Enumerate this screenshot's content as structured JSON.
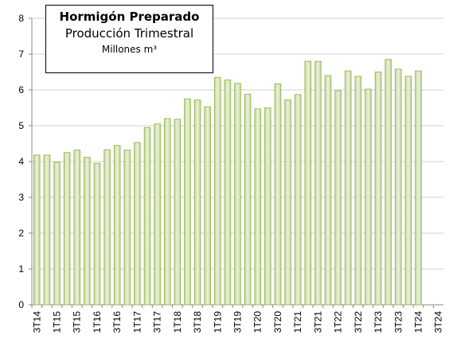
{
  "chart_data": {
    "type": "bar",
    "title": "Hormigón Preparado",
    "subtitle": "Producción Trimestral",
    "ylabel": "Millones m³",
    "categories": [
      "3T14",
      null,
      "1T15",
      null,
      "3T15",
      null,
      "1T16",
      null,
      "3T16",
      null,
      "1T17",
      null,
      "3T17",
      null,
      "1T18",
      null,
      "3T18",
      null,
      "1T19",
      null,
      "3T19",
      null,
      "1T20",
      null,
      "3T20",
      null,
      "1T21",
      null,
      "3T21",
      null,
      "1T22",
      null,
      "3T22",
      null,
      "1T23",
      null,
      "3T23",
      null,
      "1T24",
      null,
      "3T24"
    ],
    "values": [
      4.18,
      4.18,
      3.98,
      4.25,
      4.32,
      4.12,
      3.95,
      4.33,
      4.45,
      4.32,
      4.53,
      4.95,
      5.05,
      5.2,
      5.18,
      5.75,
      5.72,
      5.53,
      6.35,
      6.28,
      6.18,
      5.88,
      5.47,
      5.5,
      6.17,
      5.72,
      5.87,
      6.8,
      6.8,
      6.4,
      5.98,
      6.53,
      6.38,
      6.02,
      6.5,
      6.85,
      6.58,
      6.38,
      6.53,
      null,
      null
    ],
    "color": "#9bbb59",
    "ylim": [
      0,
      8
    ],
    "yticks": [
      0,
      1,
      2,
      3,
      4,
      5,
      6,
      7,
      8
    ],
    "grid": true
  }
}
